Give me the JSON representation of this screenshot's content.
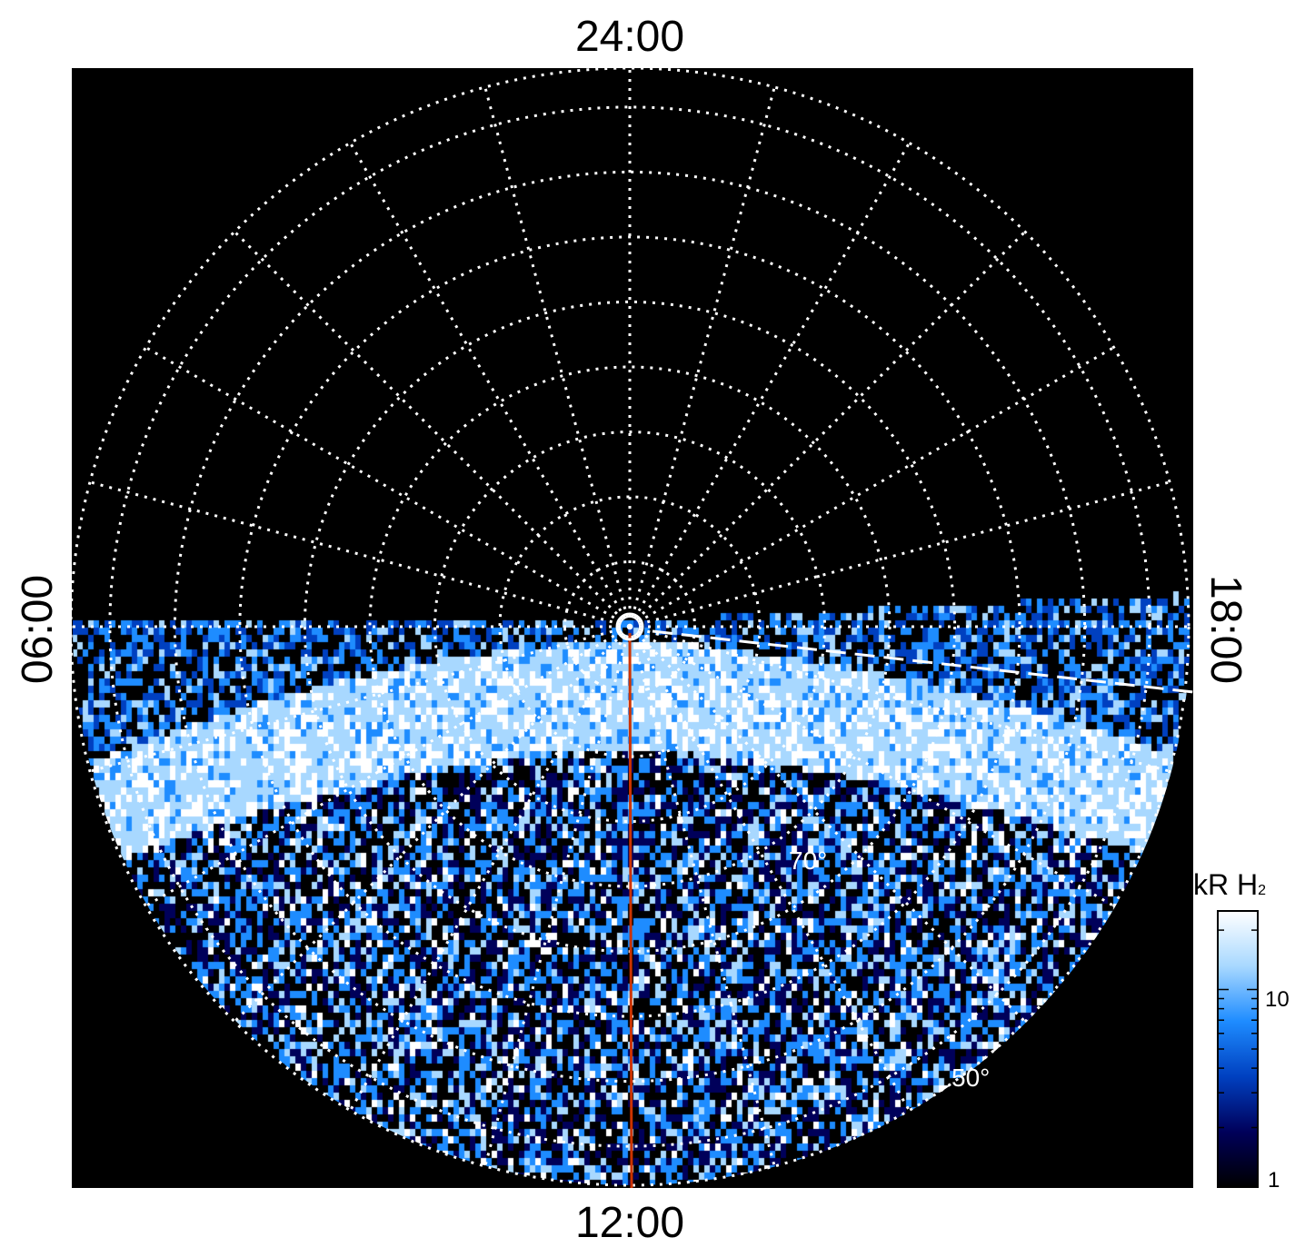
{
  "chart_data": {
    "type": "heatmap",
    "projection": "polar",
    "title": "",
    "local_time_labels": {
      "top": "24:00",
      "bottom": "12:00",
      "left": "06:00",
      "right": "18:00"
    },
    "latitude_labels": [
      "70°",
      "50°"
    ],
    "latitude_rings_deg": [
      -85,
      -80,
      -75,
      -70,
      -65,
      -60,
      -55,
      -50
    ],
    "latitude_range": [
      -90,
      -47
    ],
    "local_time_spokes_hours": 1,
    "grid": true,
    "colorbar": {
      "title_main": "kR H",
      "title_sub": "2",
      "scale": "log",
      "range": [
        1,
        25
      ],
      "ticks": [
        {
          "value": 1,
          "label": "1"
        },
        {
          "value": 10,
          "label": "10"
        }
      ],
      "colors": [
        "#000000",
        "#00005a",
        "#0040c0",
        "#1e8cff",
        "#a8d8ff",
        "#ffffff"
      ]
    },
    "auroral_oval": {
      "description_values": "mean brightness (kR) in a band around the oval",
      "band_lat_deg": [
        -78,
        -72
      ],
      "peak_kR": 25,
      "background_kR": 2
    },
    "meridian_line": {
      "local_time": "12:00",
      "color": "#cc3300"
    },
    "dashed_line": {
      "color": "#ffffff"
    },
    "colors": {
      "background": "#000000",
      "grid": "#ffffff",
      "labels": "#000000"
    }
  }
}
